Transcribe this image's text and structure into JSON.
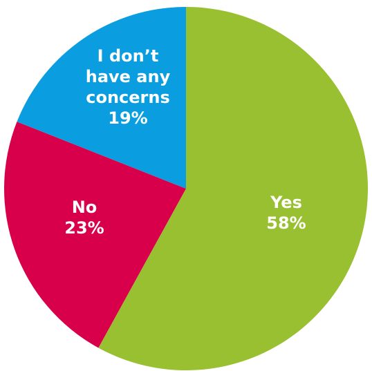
{
  "chart_data": {
    "type": "pie",
    "categories": [
      "Yes",
      "No",
      "I don’t have any concerns"
    ],
    "values": [
      58,
      23,
      19
    ],
    "unit": "%",
    "colors": [
      "#98c031",
      "#d9004b",
      "#0a9ee0"
    ],
    "labels": [
      {
        "lines": [
          "Yes",
          "58%"
        ]
      },
      {
        "lines": [
          "No",
          "23%"
        ]
      },
      {
        "lines": [
          "I don’t",
          "have any",
          "concerns",
          "19%"
        ]
      }
    ],
    "start": "top",
    "direction": "clockwise"
  }
}
